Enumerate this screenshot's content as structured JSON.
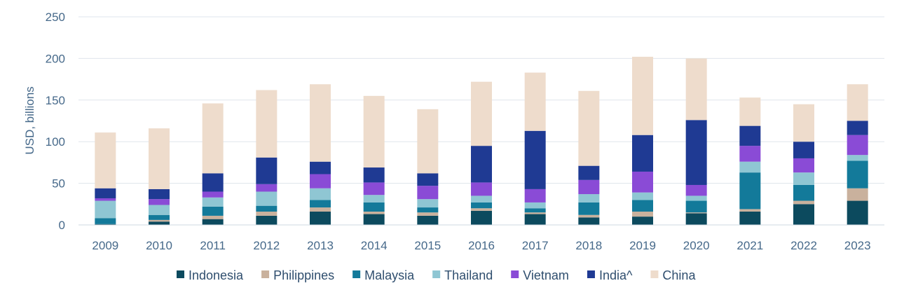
{
  "chart_data": {
    "type": "bar",
    "stacked": true,
    "title": "",
    "xlabel": "",
    "ylabel": "USD, billions",
    "ylim": [
      0,
      250
    ],
    "yticks": [
      0,
      50,
      100,
      150,
      200,
      250
    ],
    "grid": true,
    "legend_position": "bottom",
    "categories": [
      "2009",
      "2010",
      "2011",
      "2012",
      "2013",
      "2014",
      "2015",
      "2016",
      "2017",
      "2018",
      "2019",
      "2020",
      "2021",
      "2022",
      "2023"
    ],
    "series": [
      {
        "name": "Indonesia",
        "color": "#0c4a5e",
        "values": [
          1,
          4,
          7,
          11,
          16,
          13,
          11,
          17,
          13,
          9,
          10,
          14,
          16,
          25,
          29
        ]
      },
      {
        "name": "Philippines",
        "color": "#c9b19d",
        "values": [
          0,
          2,
          4,
          5,
          5,
          3,
          4,
          3,
          2,
          3,
          6,
          1,
          3,
          4,
          15
        ]
      },
      {
        "name": "Malaysia",
        "color": "#137a9a",
        "values": [
          7,
          6,
          11,
          7,
          9,
          11,
          6,
          7,
          5,
          15,
          14,
          14,
          44,
          19,
          33
        ]
      },
      {
        "name": "Thailand",
        "color": "#8fc6d3",
        "values": [
          21,
          12,
          11,
          17,
          14,
          9,
          10,
          8,
          7,
          10,
          9,
          6,
          13,
          15,
          7
        ]
      },
      {
        "name": "Vietnam",
        "color": "#8a4bd6",
        "values": [
          3,
          7,
          7,
          9,
          17,
          15,
          16,
          16,
          16,
          17,
          25,
          13,
          19,
          17,
          24
        ]
      },
      {
        "name": "India^",
        "color": "#1f3a93",
        "values": [
          12,
          12,
          22,
          32,
          15,
          18,
          15,
          44,
          70,
          17,
          44,
          78,
          24,
          20,
          17
        ]
      },
      {
        "name": "China",
        "color": "#eedccc",
        "values": [
          67,
          73,
          84,
          81,
          93,
          86,
          77,
          77,
          70,
          90,
          94,
          74,
          34,
          45,
          44
        ]
      }
    ]
  }
}
